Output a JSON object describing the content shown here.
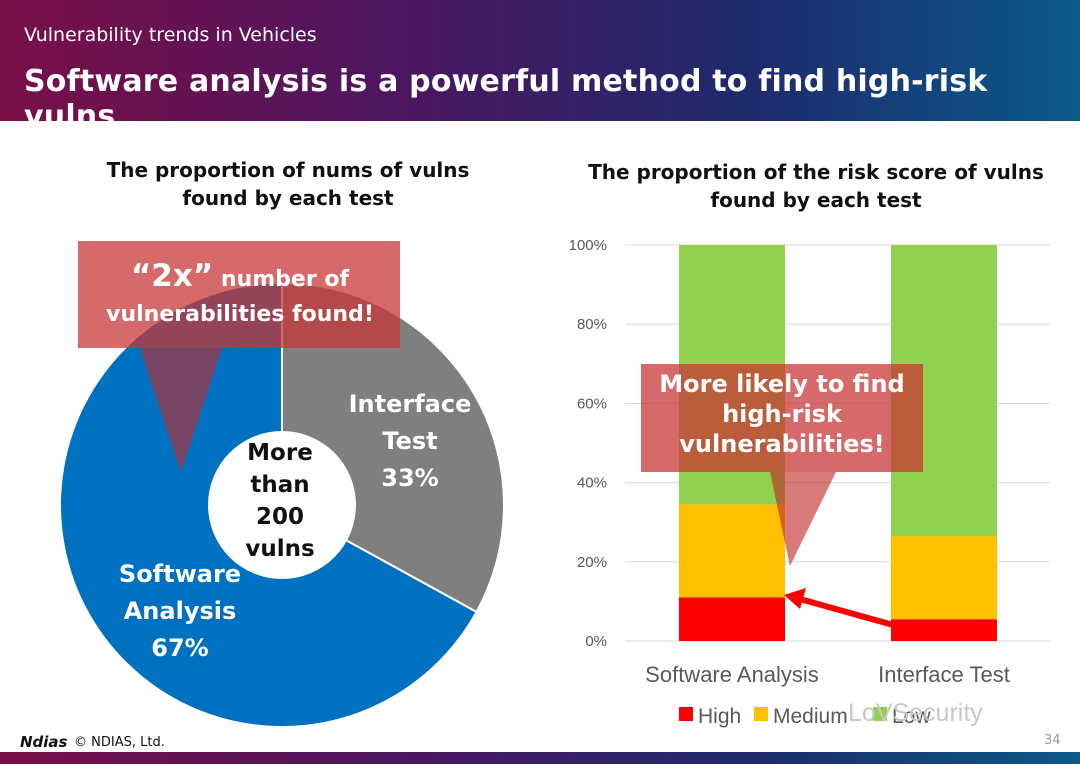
{
  "header": {
    "subtitle": "Vulnerability trends in Vehicles",
    "title": "Software analysis is a powerful method to find high-risk vulns",
    "colors": {
      "start": "#7a0f48",
      "end": "#0a5a8a"
    }
  },
  "left_panel": {
    "title_line1": "The proportion of nums of vulns",
    "title_line2": "found by each test",
    "callout": {
      "emph": "“2x”",
      "line1_rest": " number of",
      "line2": "vulnerabilities found!"
    },
    "center_label": [
      "More",
      "than",
      "200",
      "vulns"
    ],
    "slice_labels": {
      "interface": [
        "Interface",
        "Test",
        "33%"
      ],
      "software": [
        "Software",
        "Analysis",
        "67%"
      ]
    }
  },
  "right_panel": {
    "title_line1": "The proportion of the risk score of vulns",
    "title_line2": "found by each test",
    "callout": [
      "More likely to find",
      "high-risk",
      "vulnerabilities!"
    ]
  },
  "chart_data": [
    {
      "type": "pie",
      "title": "The proportion of nums of vulns found by each test",
      "slices": [
        {
          "label": "Interface Test",
          "value": 33,
          "color": "#7f7f7f"
        },
        {
          "label": "Software Analysis",
          "value": 67,
          "color": "#0070c0"
        }
      ],
      "center_text": "More than 200 vulns"
    },
    {
      "type": "bar",
      "stacked": true,
      "title": "The proportion of the risk score of vulns found by each test",
      "categories": [
        "Software Analysis",
        "Interface Test"
      ],
      "series": [
        {
          "name": "High",
          "values": [
            11,
            5.5
          ],
          "color": "#ff0000"
        },
        {
          "name": "Medium",
          "values": [
            23.5,
            21
          ],
          "color": "#ffc000"
        },
        {
          "name": "Low",
          "values": [
            65.5,
            73.5
          ],
          "color": "#92d050"
        }
      ],
      "ylim": [
        0,
        100
      ],
      "yticks": [
        "0%",
        "20%",
        "40%",
        "60%",
        "80%",
        "100%"
      ],
      "grid": true,
      "legend": "bottom"
    }
  ],
  "footer": {
    "logo": "Ndias",
    "copyright": "© NDIAS, Ltd.",
    "page": "34",
    "watermark": "LoVSecurity"
  }
}
